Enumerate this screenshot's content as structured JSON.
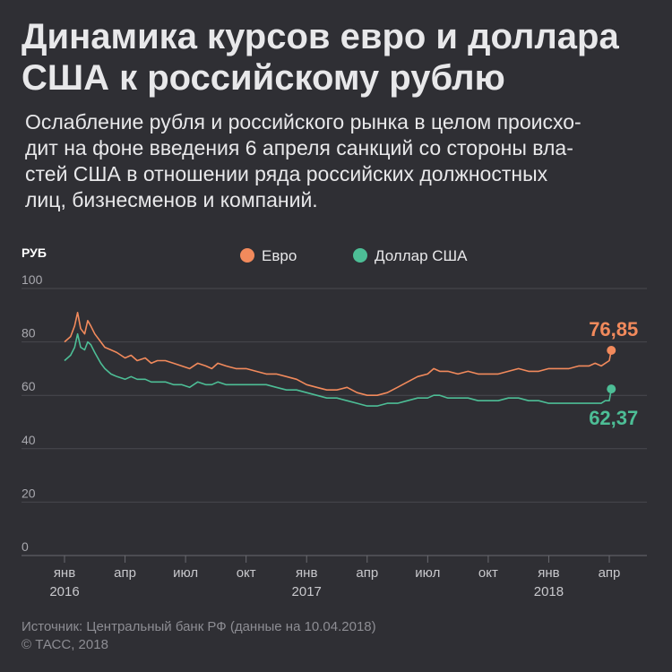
{
  "header": {
    "title_lines": [
      "Динамика курсов евро и доллара",
      "США к российскому рублю"
    ],
    "subtitle_lines": [
      "Ослабление рубля и российского рынка в целом происхо-",
      "дит на фоне введения 6 апреля санкций со стороны вла-",
      "стей США в отношении ряда российских должностных",
      "лиц, бизнесменов и компаний."
    ]
  },
  "footer": {
    "source": "Источник: Центральный банк РФ (данные на 10.04.2018)",
    "copyright": "© ТАСС, 2018"
  },
  "chart_data": {
    "type": "line",
    "ylabel": "РУБ",
    "ylim": [
      0,
      100
    ],
    "yticks": [
      0,
      20,
      40,
      60,
      80,
      100
    ],
    "xlim": [
      0,
      28
    ],
    "xticks": [
      {
        "x": 0,
        "label": "янв",
        "year": "2016"
      },
      {
        "x": 3,
        "label": "апр"
      },
      {
        "x": 6,
        "label": "июл"
      },
      {
        "x": 9,
        "label": "окт"
      },
      {
        "x": 12,
        "label": "янв",
        "year": "2017"
      },
      {
        "x": 15,
        "label": "апр"
      },
      {
        "x": 18,
        "label": "июл"
      },
      {
        "x": 21,
        "label": "окт"
      },
      {
        "x": 24,
        "label": "янв",
        "year": "2018"
      },
      {
        "x": 27,
        "label": "апр"
      }
    ],
    "legend_position": "top-center",
    "grid": true,
    "series": [
      {
        "name": "Евро",
        "color": "#f28a5c",
        "last_label": "76,85",
        "points": [
          [
            0,
            80
          ],
          [
            0.3,
            82
          ],
          [
            0.5,
            86
          ],
          [
            0.65,
            91
          ],
          [
            0.8,
            85
          ],
          [
            1.0,
            83
          ],
          [
            1.15,
            88
          ],
          [
            1.3,
            86
          ],
          [
            1.5,
            83
          ],
          [
            1.8,
            80
          ],
          [
            2.0,
            78
          ],
          [
            2.3,
            77
          ],
          [
            2.6,
            76
          ],
          [
            3.0,
            74
          ],
          [
            3.3,
            75
          ],
          [
            3.6,
            73
          ],
          [
            4.0,
            74
          ],
          [
            4.3,
            72
          ],
          [
            4.6,
            73
          ],
          [
            5.0,
            73
          ],
          [
            5.4,
            72
          ],
          [
            5.8,
            71
          ],
          [
            6.2,
            70
          ],
          [
            6.6,
            72
          ],
          [
            7.0,
            71
          ],
          [
            7.3,
            70
          ],
          [
            7.6,
            72
          ],
          [
            8.0,
            71
          ],
          [
            8.5,
            70
          ],
          [
            9.0,
            70
          ],
          [
            9.5,
            69
          ],
          [
            10.0,
            68
          ],
          [
            10.5,
            68
          ],
          [
            11.0,
            67
          ],
          [
            11.5,
            66
          ],
          [
            12.0,
            64
          ],
          [
            12.5,
            63
          ],
          [
            13.0,
            62
          ],
          [
            13.5,
            62
          ],
          [
            14.0,
            63
          ],
          [
            14.5,
            61
          ],
          [
            15.0,
            60
          ],
          [
            15.5,
            60
          ],
          [
            16.0,
            61
          ],
          [
            16.5,
            63
          ],
          [
            17.0,
            65
          ],
          [
            17.5,
            67
          ],
          [
            18.0,
            68
          ],
          [
            18.3,
            70
          ],
          [
            18.6,
            69
          ],
          [
            19.0,
            69
          ],
          [
            19.5,
            68
          ],
          [
            20.0,
            69
          ],
          [
            20.5,
            68
          ],
          [
            21.0,
            68
          ],
          [
            21.5,
            68
          ],
          [
            22.0,
            69
          ],
          [
            22.5,
            70
          ],
          [
            23.0,
            69
          ],
          [
            23.5,
            69
          ],
          [
            24.0,
            70
          ],
          [
            24.5,
            70
          ],
          [
            25.0,
            70
          ],
          [
            25.5,
            71
          ],
          [
            26.0,
            71
          ],
          [
            26.3,
            72
          ],
          [
            26.6,
            71
          ],
          [
            26.8,
            72
          ],
          [
            27.0,
            73
          ],
          [
            27.1,
            76.85
          ]
        ]
      },
      {
        "name": "Доллар США",
        "color": "#4dbe96",
        "last_label": "62,37",
        "points": [
          [
            0,
            73
          ],
          [
            0.3,
            75
          ],
          [
            0.5,
            78
          ],
          [
            0.65,
            83
          ],
          [
            0.8,
            78
          ],
          [
            1.0,
            77
          ],
          [
            1.15,
            80
          ],
          [
            1.3,
            79
          ],
          [
            1.5,
            76
          ],
          [
            1.8,
            72
          ],
          [
            2.0,
            70
          ],
          [
            2.3,
            68
          ],
          [
            2.6,
            67
          ],
          [
            3.0,
            66
          ],
          [
            3.3,
            67
          ],
          [
            3.6,
            66
          ],
          [
            4.0,
            66
          ],
          [
            4.3,
            65
          ],
          [
            4.6,
            65
          ],
          [
            5.0,
            65
          ],
          [
            5.4,
            64
          ],
          [
            5.8,
            64
          ],
          [
            6.2,
            63
          ],
          [
            6.6,
            65
          ],
          [
            7.0,
            64
          ],
          [
            7.3,
            64
          ],
          [
            7.6,
            65
          ],
          [
            8.0,
            64
          ],
          [
            8.5,
            64
          ],
          [
            9.0,
            64
          ],
          [
            9.5,
            64
          ],
          [
            10.0,
            64
          ],
          [
            10.5,
            63
          ],
          [
            11.0,
            62
          ],
          [
            11.5,
            62
          ],
          [
            12.0,
            61
          ],
          [
            12.5,
            60
          ],
          [
            13.0,
            59
          ],
          [
            13.5,
            59
          ],
          [
            14.0,
            58
          ],
          [
            14.5,
            57
          ],
          [
            15.0,
            56
          ],
          [
            15.5,
            56
          ],
          [
            16.0,
            57
          ],
          [
            16.5,
            57
          ],
          [
            17.0,
            58
          ],
          [
            17.5,
            59
          ],
          [
            18.0,
            59
          ],
          [
            18.3,
            60
          ],
          [
            18.6,
            60
          ],
          [
            19.0,
            59
          ],
          [
            19.5,
            59
          ],
          [
            20.0,
            59
          ],
          [
            20.5,
            58
          ],
          [
            21.0,
            58
          ],
          [
            21.5,
            58
          ],
          [
            22.0,
            59
          ],
          [
            22.5,
            59
          ],
          [
            23.0,
            58
          ],
          [
            23.5,
            58
          ],
          [
            24.0,
            57
          ],
          [
            24.5,
            57
          ],
          [
            25.0,
            57
          ],
          [
            25.5,
            57
          ],
          [
            26.0,
            57
          ],
          [
            26.3,
            57
          ],
          [
            26.6,
            57
          ],
          [
            26.8,
            58
          ],
          [
            27.0,
            58
          ],
          [
            27.1,
            62.37
          ]
        ]
      }
    ]
  }
}
